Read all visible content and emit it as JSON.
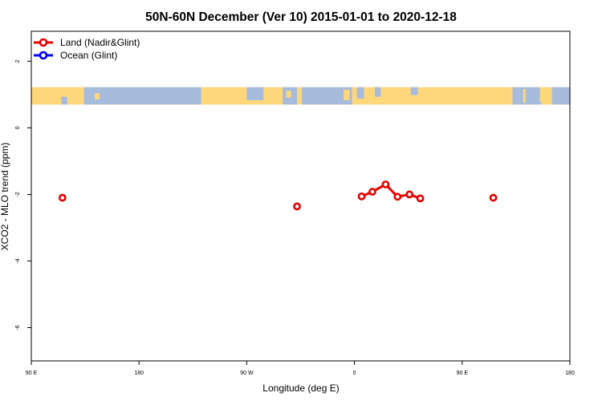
{
  "chart_data": {
    "type": "line",
    "title": "50N-60N December (Ver 10)   2015-01-01 to 2020-12-18",
    "xlabel": "Longitude (deg E)",
    "ylabel": "XCO2 - MLO trend (ppm)",
    "xlim": [
      90,
      540
    ],
    "ylim": [
      -7.0,
      2.9
    ],
    "x_ticks": [
      {
        "value": 90,
        "label": "90 E"
      },
      {
        "value": 180,
        "label": "180"
      },
      {
        "value": 270,
        "label": "90 W"
      },
      {
        "value": 360,
        "label": "0"
      },
      {
        "value": 450,
        "label": "90 E"
      },
      {
        "value": 540,
        "label": "180"
      }
    ],
    "y_ticks": [
      {
        "value": 2,
        "label": "2"
      },
      {
        "value": 0,
        "label": "0"
      },
      {
        "value": -2,
        "label": "-2"
      },
      {
        "value": -4,
        "label": "-4"
      },
      {
        "value": -6,
        "label": "-6"
      }
    ],
    "map_strip": {
      "y_range": [
        0.7,
        1.22
      ],
      "ocean_color": "#a7bcdd",
      "land_color": "#fdd77a"
    },
    "series": [
      {
        "name": "Land (Nadir&Glint)",
        "color": "#e60000",
        "segments": [
          [
            {
              "x": 116,
              "y": -2.1
            }
          ],
          [
            {
              "x": 312,
              "y": -2.36
            }
          ],
          [
            {
              "x": 366,
              "y": -2.06
            },
            {
              "x": 375,
              "y": -1.92
            },
            {
              "x": 386,
              "y": -1.7
            },
            {
              "x": 396,
              "y": -2.07
            },
            {
              "x": 406,
              "y": -2.0
            },
            {
              "x": 415,
              "y": -2.12
            }
          ],
          [
            {
              "x": 476,
              "y": -2.1
            }
          ]
        ]
      },
      {
        "name": "Ocean (Glint)",
        "color": "#0000ee",
        "segments": []
      }
    ],
    "legend_position": "top-left"
  }
}
